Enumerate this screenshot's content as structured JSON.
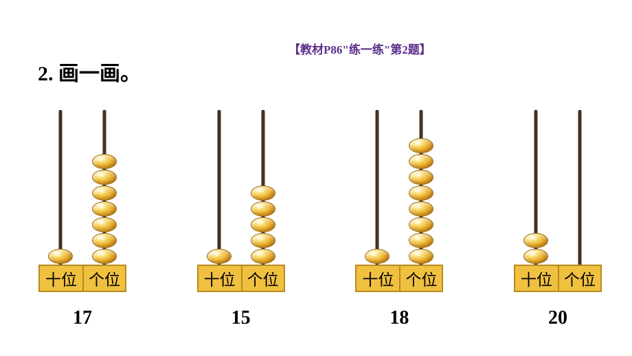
{
  "header_note": "【教材P86\"练一练\"第2题】",
  "question_title": "2. 画一画。",
  "place_labels": {
    "tens": "十位",
    "ones": "个位"
  },
  "rod_height": 225,
  "rod_color": "#3f3226",
  "bead_colors": {
    "highlight": "#fff7d8",
    "mid": "#f7d864",
    "base": "#e6a82a",
    "shadow": "#b87a12",
    "border": "#9c6a10"
  },
  "label_box": {
    "background": "#f0c040",
    "border": "#b78a1d",
    "fontsize": 23
  },
  "number_fontsize": 28,
  "abaci": [
    {
      "value": "17",
      "tens_beads": 1,
      "ones_beads": 7
    },
    {
      "value": "15",
      "tens_beads": 1,
      "ones_beads": 5
    },
    {
      "value": "18",
      "tens_beads": 1,
      "ones_beads": 8
    },
    {
      "value": "20",
      "tens_beads": 2,
      "ones_beads": 0
    }
  ]
}
